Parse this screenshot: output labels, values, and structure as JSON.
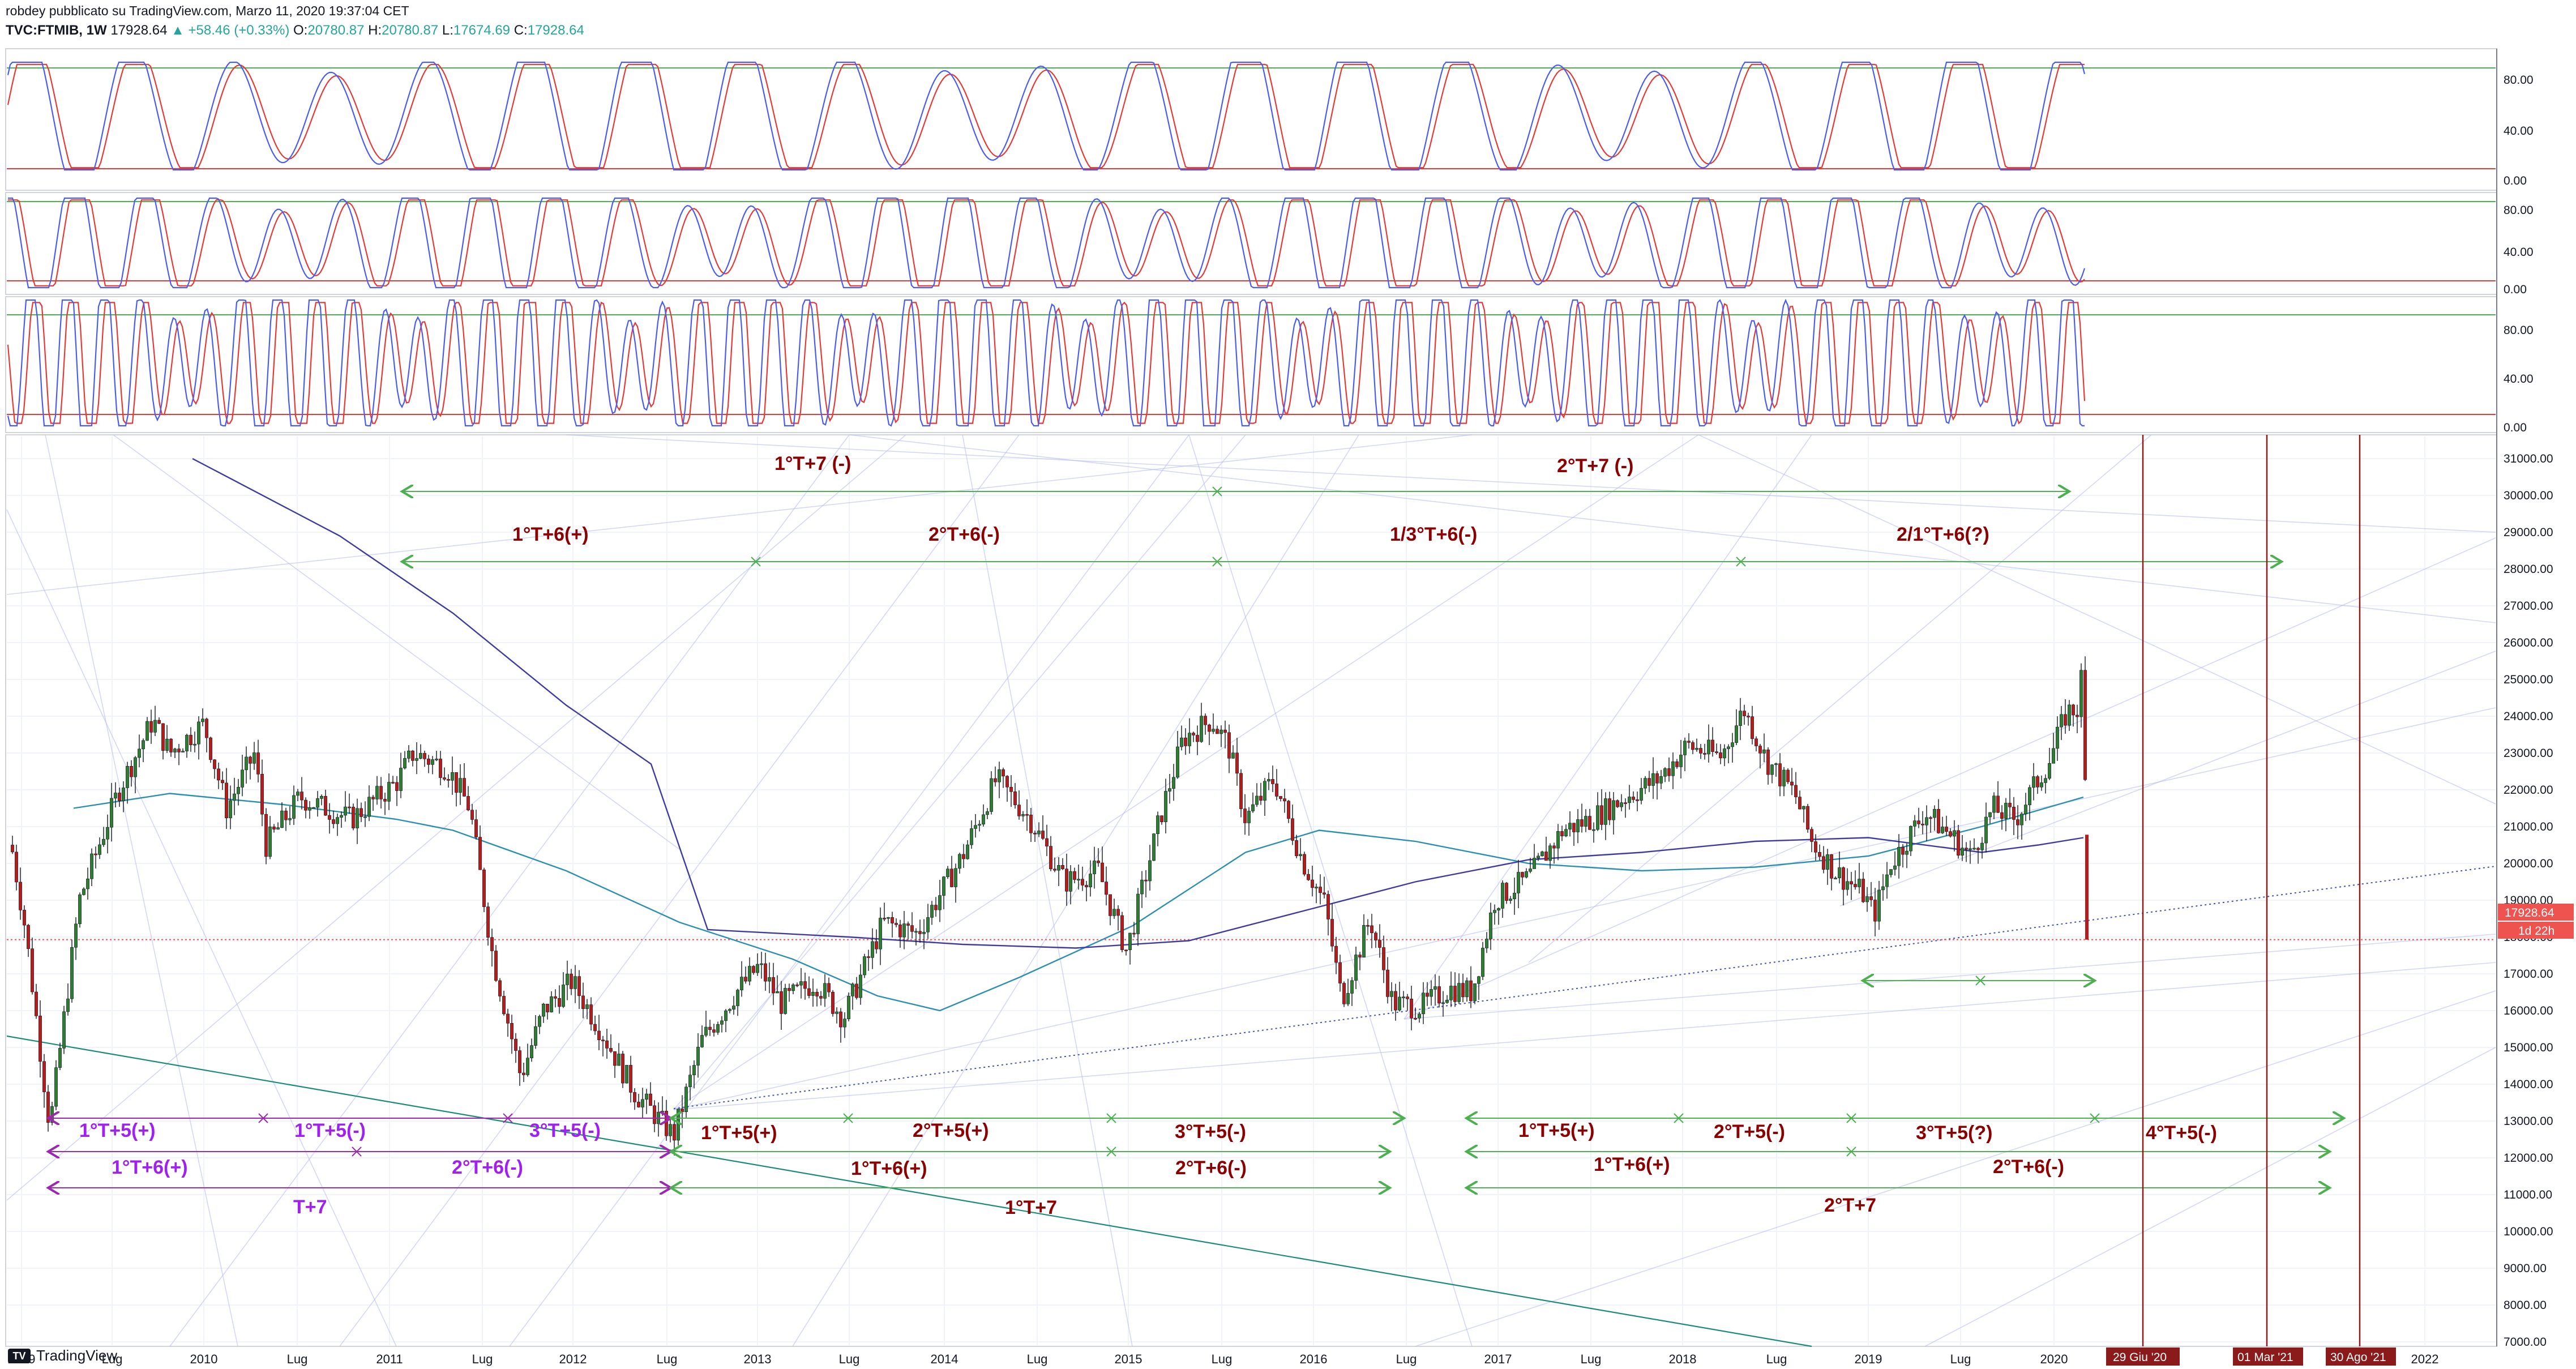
{
  "header": {
    "line1": "robdey pubblicato su TradingView.com, Marzo 11, 2020 19:37:04 CET",
    "symbol": "TVC:FTMIB, 1W",
    "price": "17928.64",
    "change": "+58.46 (+0.33%)",
    "o_label": "O:",
    "o_val": "20780.87",
    "h_label": "H:",
    "h_val": "20780.87",
    "l_label": "L:",
    "l_val": "17674.69",
    "c_label": "C:",
    "c_val": "17928.64"
  },
  "osc_axis": [
    "80.00",
    "40.00",
    "0.00"
  ],
  "price_axis": [
    "31000.00",
    "30000.00",
    "29000.00",
    "28000.00",
    "27000.00",
    "26000.00",
    "25000.00",
    "24000.00",
    "23000.00",
    "22000.00",
    "21000.00",
    "20000.00",
    "19000.00",
    "18000.00",
    "17000.00",
    "16000.00",
    "15000.00",
    "14000.00",
    "13000.00",
    "12000.00",
    "11000.00",
    "10000.00",
    "9000.00",
    "8000.00",
    "7000.00"
  ],
  "last_price_tag": "17928.64",
  "countdown_tag": "1d 22h",
  "time_axis": [
    "2009",
    "Lug",
    "2010",
    "Lug",
    "2011",
    "Lug",
    "2012",
    "Lug",
    "2013",
    "Lug",
    "2014",
    "Lug",
    "2015",
    "Lug",
    "2016",
    "Lug",
    "2017",
    "Lug",
    "2018",
    "Lug",
    "2019",
    "Lug",
    "2020",
    "2022"
  ],
  "date_tags": [
    "29 Giu '20",
    "01 Mar '21",
    "30 Ago '21"
  ],
  "cycle_labels": {
    "top_row1_left": "1°T+7 (-)",
    "top_row1_right": "2°T+7 (-)",
    "top_row2_a": "1°T+6(+)",
    "top_row2_b": "2°T+6(-)",
    "top_row2_c": "1/3°T+6(-)",
    "top_row2_d": "2/1°T+6(?)",
    "p_t5_1": "1°T+5(+)",
    "p_t5_2": "1°T+5(-)",
    "p_t5_3": "3°T+5(-)",
    "p_t6_1": "1°T+6(+)",
    "p_t6_2": "2°T+6(-)",
    "p_t7": "T+7",
    "m_t5_1": "1°T+5(+)",
    "m_t5_2": "2°T+5(+)",
    "m_t5_3": "3°T+5(-)",
    "m_t6_1": "1°T+6(+)",
    "m_t6_2": "2°T+6(-)",
    "m_t7": "1°T+7",
    "r_t5_1": "1°T+5(+)",
    "r_t5_2": "2°T+5(-)",
    "r_t5_3": "3°T+5(?)",
    "r_t5_4": "4°T+5(-)",
    "r_t6_1": "1°T+6(+)",
    "r_t6_2": "2°T+6(-)",
    "r_t7": "2°T+7"
  },
  "footer": {
    "brand": "TradingView",
    "logo": "tv-logo-icon"
  },
  "colors": {
    "up": "#26a69a",
    "down": "#ef5350",
    "candle_up": "#2e7d32",
    "candle_down": "#b71c1c",
    "cycle_green": "#4caf50",
    "cycle_purple": "#9c27b0",
    "label_red": "#8b0000",
    "label_purple": "#a020f0",
    "ma_teal": "#2a8fb0",
    "ma_navy": "#3f3a9e",
    "osc_blue": "#4a5cf0",
    "osc_red": "#e53935",
    "date_tag_bg": "#8b1a1a"
  }
}
